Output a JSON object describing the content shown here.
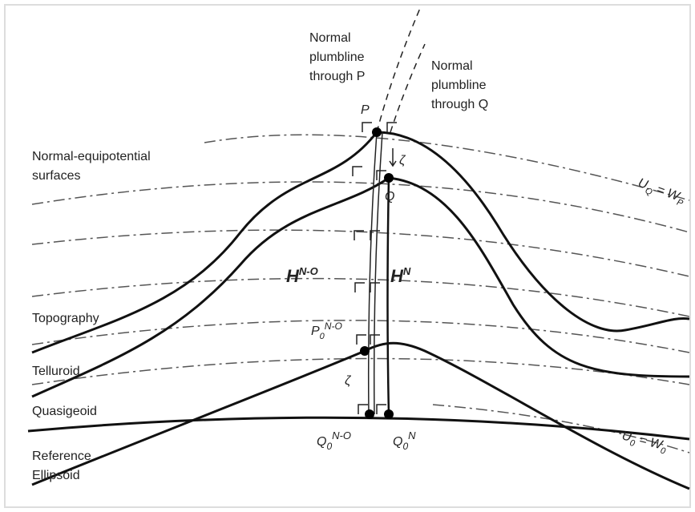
{
  "labels": {
    "plumbline_p": [
      "Normal",
      "plumbline",
      "through P"
    ],
    "plumbline_q": [
      "Normal",
      "plumbline",
      "through Q"
    ],
    "equipotential": [
      "Normal-equipotential",
      "surfaces"
    ],
    "topography": "Topography",
    "telluroid": "Telluroid",
    "quasigeoid": "Quasigeoid",
    "ellipsoid": [
      "Reference",
      "Ellipsoid"
    ],
    "uq_wp": {
      "u": "U",
      "u_sub": "Q",
      "eq": " = ",
      "w": "W",
      "w_sub": "P"
    },
    "u0_w0": {
      "u": "U",
      "u_sub": "0",
      "eq": " = ",
      "w": "W",
      "w_sub": "0"
    }
  },
  "points": {
    "p": "P",
    "q": "Q",
    "zeta_top": "ζ",
    "zeta_bottom": "ζ",
    "h_no": {
      "base": "H",
      "sup": "N-O"
    },
    "h_n": {
      "base": "H",
      "sup": "N"
    },
    "p0_no": {
      "base": "P",
      "sub": "0",
      "sup": "N-O"
    },
    "q0_no": {
      "base": "Q",
      "sub": "0",
      "sup": "N-O"
    },
    "q0_n": {
      "base": "Q",
      "sub": "0",
      "sup": "N"
    }
  }
}
